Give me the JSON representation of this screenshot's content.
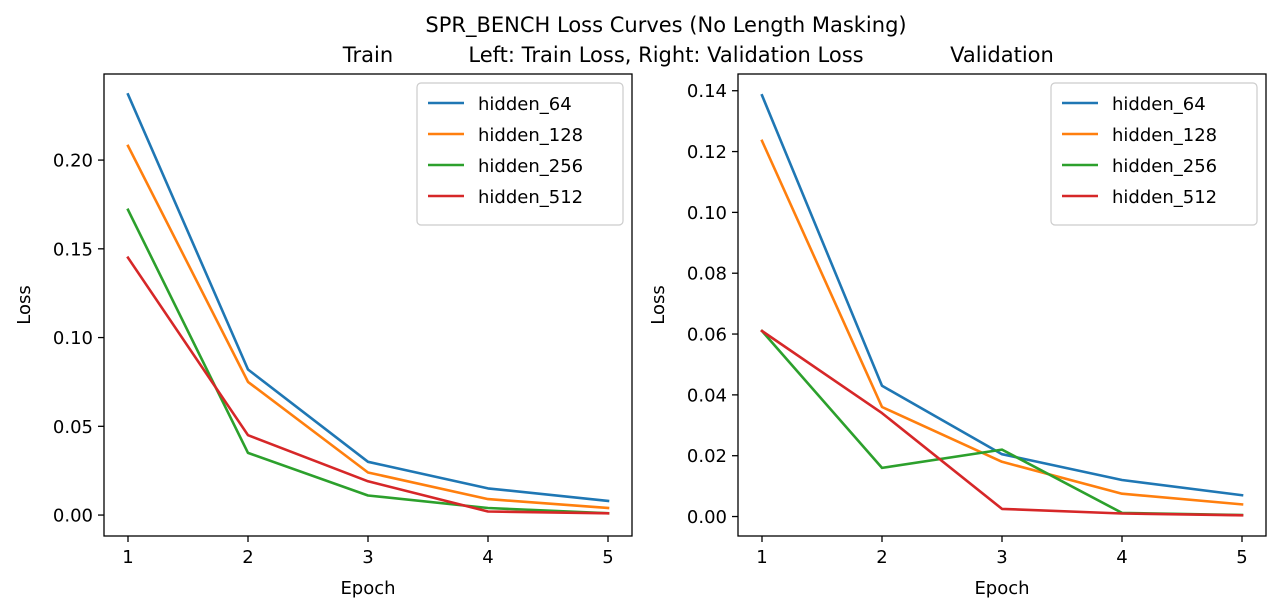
{
  "suptitle": "SPR_BENCH Loss Curves (No Length Masking)",
  "subtitle": "Left: Train Loss, Right: Validation Loss",
  "chart_data": [
    {
      "type": "line",
      "title": "Train",
      "xlabel": "Epoch",
      "ylabel": "Loss",
      "x": [
        1,
        2,
        3,
        4,
        5
      ],
      "xlim": [
        0.8,
        5.2
      ],
      "ylim": [
        -0.0118,
        0.2485
      ],
      "xticks": [
        "1",
        "2",
        "3",
        "4",
        "5"
      ],
      "yticks": [
        0,
        0.05,
        0.1,
        0.15,
        0.2
      ],
      "ytick_labels": [
        "0.00",
        "0.05",
        "0.10",
        "0.15",
        "0.20"
      ],
      "grid": false,
      "legend": "top-right",
      "series": [
        {
          "name": "hidden_64",
          "color": "#1f77b4",
          "values": [
            0.237,
            0.082,
            0.03,
            0.015,
            0.008
          ]
        },
        {
          "name": "hidden_128",
          "color": "#ff7f0e",
          "values": [
            0.208,
            0.075,
            0.024,
            0.009,
            0.004
          ]
        },
        {
          "name": "hidden_256",
          "color": "#2ca02c",
          "values": [
            0.172,
            0.035,
            0.011,
            0.004,
            0.001
          ]
        },
        {
          "name": "hidden_512",
          "color": "#d62728",
          "values": [
            0.145,
            0.045,
            0.019,
            0.002,
            0.001
          ]
        }
      ]
    },
    {
      "type": "line",
      "title": "Validation",
      "xlabel": "Epoch",
      "ylabel": "Loss",
      "x": [
        1,
        2,
        3,
        4,
        5
      ],
      "xlim": [
        0.8,
        5.2
      ],
      "ylim": [
        -0.0064,
        0.1455
      ],
      "xticks": [
        "1",
        "2",
        "3",
        "4",
        "5"
      ],
      "yticks": [
        0,
        0.02,
        0.04,
        0.06,
        0.08,
        0.1,
        0.12,
        0.14
      ],
      "ytick_labels": [
        "0.00",
        "0.02",
        "0.04",
        "0.06",
        "0.08",
        "0.10",
        "0.12",
        "0.14"
      ],
      "grid": false,
      "legend": "top-right",
      "series": [
        {
          "name": "hidden_64",
          "color": "#1f77b4",
          "values": [
            0.1385,
            0.043,
            0.0205,
            0.012,
            0.007
          ]
        },
        {
          "name": "hidden_128",
          "color": "#ff7f0e",
          "values": [
            0.1235,
            0.036,
            0.018,
            0.0075,
            0.004
          ]
        },
        {
          "name": "hidden_256",
          "color": "#2ca02c",
          "values": [
            0.061,
            0.016,
            0.022,
            0.0012,
            0.0005
          ]
        },
        {
          "name": "hidden_512",
          "color": "#d62728",
          "values": [
            0.061,
            0.034,
            0.0025,
            0.001,
            0.0004
          ]
        }
      ]
    }
  ]
}
